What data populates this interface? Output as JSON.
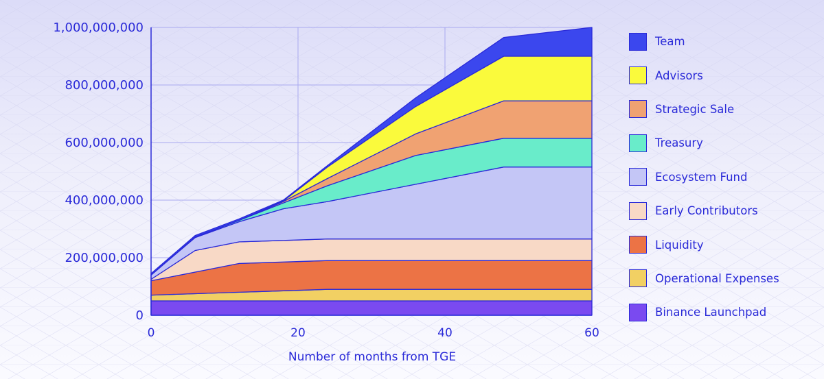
{
  "chart_data": {
    "type": "area",
    "stacked": true,
    "title": "",
    "xlabel": "Number of months from TGE",
    "ylabel": "",
    "xlim": [
      0,
      60
    ],
    "ylim": [
      0,
      1000000000
    ],
    "x_ticks": [
      0,
      20,
      40,
      60
    ],
    "x_tick_labels": [
      "0",
      "20",
      "40",
      "60"
    ],
    "y_ticks": [
      0,
      200000000,
      400000000,
      600000000,
      800000000,
      1000000000
    ],
    "y_tick_labels": [
      "0",
      "200,000,000",
      "400,000,000",
      "600,000,000",
      "800,000,000",
      "1,000,000,000"
    ],
    "grid": true,
    "legend_position": "right",
    "x": [
      0,
      6,
      12,
      18,
      24,
      36,
      48,
      60
    ],
    "series": [
      {
        "name": "Binance Launchpad",
        "color": "#7a4af0",
        "values": [
          50000000,
          50000000,
          50000000,
          50000000,
          50000000,
          50000000,
          50000000,
          50000000
        ]
      },
      {
        "name": "Operational Expenses",
        "color": "#f2d063",
        "values": [
          20000000,
          25000000,
          30000000,
          35000000,
          40000000,
          40000000,
          40000000,
          40000000
        ]
      },
      {
        "name": "Liquidity",
        "color": "#ec7345",
        "values": [
          50000000,
          75000000,
          100000000,
          100000000,
          100000000,
          100000000,
          100000000,
          100000000
        ]
      },
      {
        "name": "Early Contributors",
        "color": "#f8d9c6",
        "values": [
          5000000,
          75000000,
          75000000,
          75000000,
          75000000,
          75000000,
          75000000,
          75000000
        ]
      },
      {
        "name": "Ecosystem Fund",
        "color": "#c4c6f6",
        "values": [
          15000000,
          45000000,
          70000000,
          110000000,
          130000000,
          190000000,
          250000000,
          250000000
        ]
      },
      {
        "name": "Treasury",
        "color": "#69ecca",
        "values": [
          0,
          2000000,
          5000000,
          20000000,
          55000000,
          100000000,
          100000000,
          100000000
        ]
      },
      {
        "name": "Strategic Sale",
        "color": "#f0a272",
        "values": [
          0,
          0,
          0,
          5000000,
          25000000,
          75000000,
          130000000,
          130000000
        ]
      },
      {
        "name": "Advisors",
        "color": "#fafa3c",
        "values": [
          0,
          0,
          0,
          2000000,
          40000000,
          95000000,
          155000000,
          155000000
        ]
      },
      {
        "name": "Team",
        "color": "#3b47ee",
        "values": [
          5000000,
          5000000,
          5000000,
          3000000,
          5000000,
          30000000,
          65000000,
          100000000
        ]
      }
    ]
  },
  "legend": {
    "items": [
      {
        "label": "Team",
        "color": "#3b47ee"
      },
      {
        "label": "Advisors",
        "color": "#fafa3c"
      },
      {
        "label": "Strategic Sale",
        "color": "#f0a272"
      },
      {
        "label": "Treasury",
        "color": "#69ecca"
      },
      {
        "label": "Ecosystem Fund",
        "color": "#c4c6f6"
      },
      {
        "label": "Early Contributors",
        "color": "#f8d9c6"
      },
      {
        "label": "Liquidity",
        "color": "#ec7345"
      },
      {
        "label": "Operational Expenses",
        "color": "#f2d063"
      },
      {
        "label": "Binance Launchpad",
        "color": "#7a4af0"
      }
    ]
  },
  "colors": {
    "axis": "#2a2ad8",
    "grid": "#a9a9f0",
    "series_stroke": "#2a2ad8"
  }
}
